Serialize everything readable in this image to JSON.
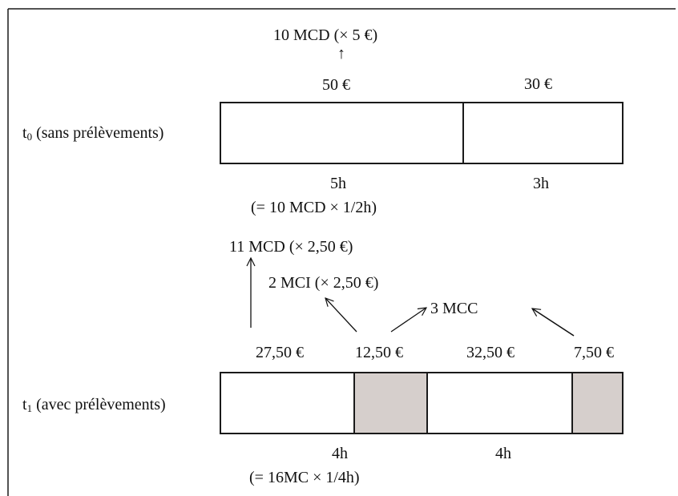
{
  "frame": {
    "border_color": "#1a1a1a"
  },
  "t0": {
    "row_label": {
      "prefix": "t",
      "subscript": "0",
      "suffix": " (sans prélèvements)"
    },
    "top_note": "10 MCD (× 5 €)",
    "arrow_glyph": "↑",
    "values": [
      "50 €",
      "30 €"
    ],
    "durations": [
      "5h",
      "3h"
    ],
    "duration_note": "(= 10 MCD × 1/2h)",
    "segment_fill": "#ffffff"
  },
  "t1": {
    "row_label": {
      "prefix": "t",
      "subscript": "1",
      "suffix": " (avec prélèvements)"
    },
    "notes": {
      "mcd": "11 MCD (× 2,50 €)",
      "mci": "2 MCI (× 2,50 €)",
      "mcc": "3 MCC"
    },
    "values": [
      "27,50 €",
      "12,50 €",
      "32,50 €",
      "7,50 €"
    ],
    "durations": [
      "4h",
      "4h"
    ],
    "duration_note": "(= 16MC × 1/4h)",
    "white_fill": "#ffffff",
    "shaded_fill": "#d6cfcc"
  }
}
